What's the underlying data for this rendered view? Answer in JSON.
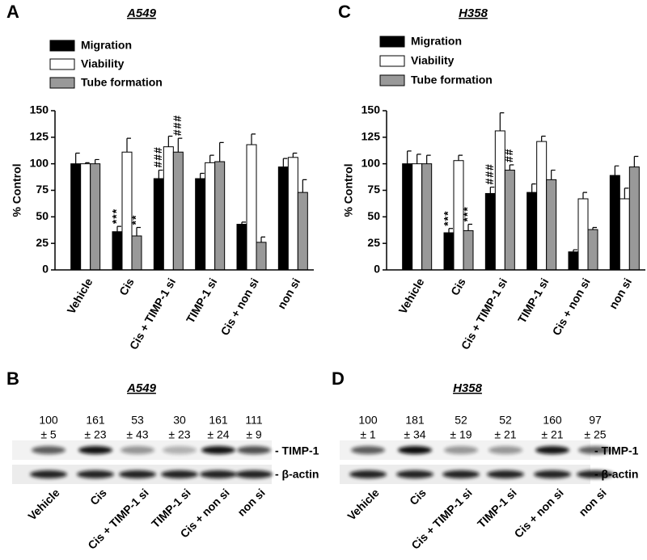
{
  "chart_data": [
    {
      "type": "bar",
      "panel": "A",
      "title": "A549",
      "ylabel": "% Control",
      "categories": [
        "Vehicle",
        "Cis",
        "Cis + TIMP-1 si",
        "TIMP-1 si",
        "Cis + non si",
        "non si"
      ],
      "series": [
        {
          "name": "Migration",
          "color": "#000000",
          "values": [
            100,
            36,
            86,
            86,
            43,
            97
          ],
          "errors": [
            10,
            5,
            8,
            5,
            2,
            8
          ],
          "sig_labels": [
            null,
            "***",
            "###",
            null,
            null,
            null
          ]
        },
        {
          "name": "Viability",
          "color": "#ffffff",
          "values": [
            100,
            111,
            116,
            101,
            118,
            106
          ],
          "errors": [
            1,
            13,
            10,
            7,
            10,
            4
          ],
          "sig_labels": [
            null,
            null,
            null,
            null,
            null,
            null
          ]
        },
        {
          "name": "Tube formation",
          "color": "#999999",
          "values": [
            100,
            32,
            111,
            102,
            26,
            73
          ],
          "errors": [
            4,
            8,
            13,
            18,
            5,
            12
          ],
          "sig_labels": [
            null,
            "**",
            "###",
            null,
            null,
            null
          ]
        }
      ],
      "ylim": [
        0,
        150
      ],
      "yticks": [
        0,
        25,
        50,
        75,
        100,
        125,
        150
      ]
    },
    {
      "type": "bar",
      "panel": "C",
      "title": "H358",
      "ylabel": "% Control",
      "categories": [
        "Vehicle",
        "Cis",
        "Cis + TIMP-1 si",
        "TIMP-1 si",
        "Cis + non si",
        "non si"
      ],
      "series": [
        {
          "name": "Migration",
          "color": "#000000",
          "values": [
            100,
            35,
            72,
            73,
            17,
            89
          ],
          "errors": [
            12,
            4,
            6,
            8,
            2,
            9
          ],
          "sig_labels": [
            null,
            "***",
            "###",
            null,
            null,
            null
          ]
        },
        {
          "name": "Viability",
          "color": "#ffffff",
          "values": [
            100,
            103,
            131,
            121,
            67,
            67
          ],
          "errors": [
            9,
            5,
            17,
            5,
            6,
            10
          ],
          "sig_labels": [
            null,
            null,
            null,
            null,
            null,
            null
          ]
        },
        {
          "name": "Tube formation",
          "color": "#999999",
          "values": [
            100,
            37,
            94,
            85,
            38,
            97
          ],
          "errors": [
            8,
            6,
            5,
            9,
            2,
            10
          ],
          "sig_labels": [
            null,
            "***",
            "##",
            null,
            null,
            null
          ]
        }
      ],
      "ylim": [
        0,
        150
      ],
      "yticks": [
        0,
        25,
        50,
        75,
        100,
        125,
        150
      ]
    }
  ],
  "blots": [
    {
      "panel": "B",
      "title": "A549",
      "lanes": [
        "Vehicle",
        "Cis",
        "Cis + TIMP-1 si",
        "TIMP-1 si",
        "Cis + non si",
        "non si"
      ],
      "values": [
        100,
        161,
        53,
        30,
        161,
        111
      ],
      "errors": [
        "± 5",
        "± 23",
        "± 43",
        "± 23",
        "± 24",
        "± 9"
      ],
      "bands": [
        "- TIMP-1",
        "- β-actin"
      ]
    },
    {
      "panel": "D",
      "title": "H358",
      "lanes": [
        "Vehicle",
        "Cis",
        "Cis + TIMP-1 si",
        "TIMP-1 si",
        "Cis + non si",
        "non si"
      ],
      "values": [
        100,
        181,
        52,
        52,
        160,
        97
      ],
      "errors": [
        "± 1",
        "± 34",
        "± 19",
        "± 21",
        "± 21",
        "± 25"
      ],
      "bands": [
        "- TIMP-1",
        "- β-actin"
      ]
    }
  ]
}
